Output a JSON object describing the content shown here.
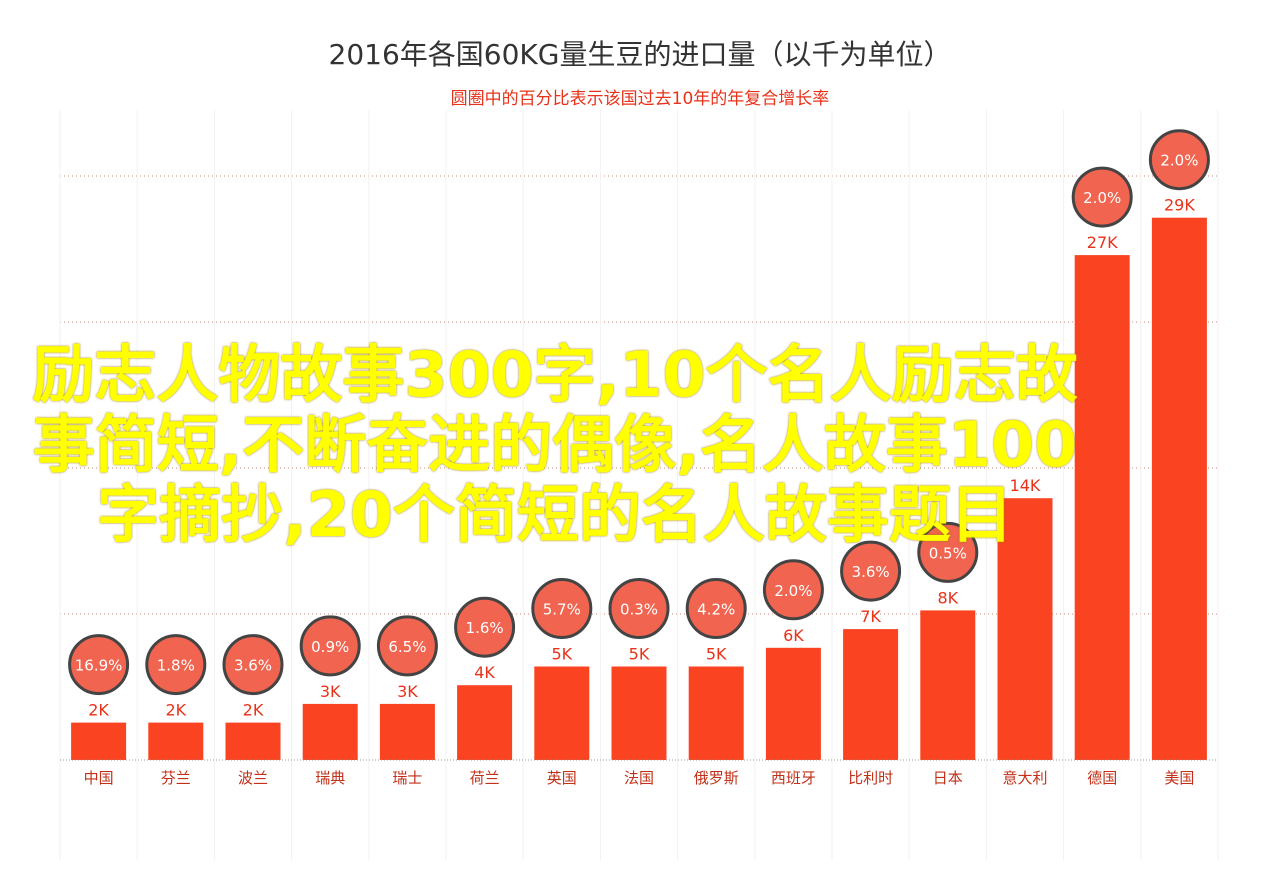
{
  "chart_data": {
    "type": "bar",
    "title": "2016年各国60KG量生豆的进口量（以千为单位）",
    "subtitle": "圆圈中的百分比表示该国过去10年的年复合增长率",
    "categories": [
      "中国",
      "芬兰",
      "波兰",
      "瑞典",
      "瑞士",
      "荷兰",
      "英国",
      "法国",
      "俄罗斯",
      "西班牙",
      "比利时",
      "日本",
      "意大利",
      "德国",
      "美国"
    ],
    "values": [
      2,
      2,
      2,
      3,
      3,
      4,
      5,
      5,
      5,
      6,
      7,
      8,
      14,
      27,
      29
    ],
    "value_labels": [
      "2K",
      "2K",
      "2K",
      "3K",
      "3K",
      "4K",
      "5K",
      "5K",
      "5K",
      "6K",
      "7K",
      "8K",
      "14K",
      "27K",
      "29K"
    ],
    "cagr_labels": [
      "16.9%",
      "1.8%",
      "3.6%",
      "0.9%",
      "6.5%",
      "1.6%",
      "5.7%",
      "0.3%",
      "4.2%",
      "2.0%",
      "3.6%",
      "0.5%",
      "",
      "2.0%",
      "2.0%"
    ],
    "ylim": [
      0,
      32
    ],
    "grid": true,
    "colors": {
      "bar": "#fa4320",
      "circle": "#f06450",
      "circle_stroke": "#444444",
      "subtitle": "#e8321a",
      "title": "#333333"
    }
  },
  "overlay": {
    "lines": [
      "励志人物故事300字,10个名人励志故",
      "事简短,不断奋进的偶像,名人故事100",
      "字摘抄,20个简短的名人故事题目"
    ]
  }
}
